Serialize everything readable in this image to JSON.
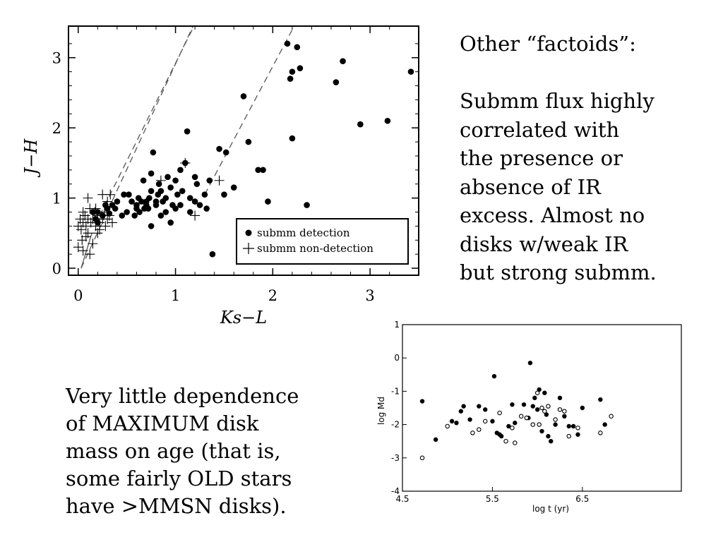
{
  "text": {
    "factoids": "Other “factoids”:\n\nSubmm flux highly\n correlated with\n the presence or\n absence of IR\n excess. Almost no\n disks w/weak IR\n but strong submm.",
    "dependence": "Very little dependence\n of MAXIMUM disk\n mass on age (that is,\n some fairly OLD stars\n have >MMSN disks)."
  },
  "chart_data": [
    {
      "type": "scatter",
      "title": "",
      "xlabel": "Ks−L",
      "ylabel": "J−H",
      "xlim": [
        -0.1,
        3.5
      ],
      "ylim": [
        -0.1,
        3.45
      ],
      "x_ticks": [
        0,
        1,
        2,
        3
      ],
      "x_tick_labels": [
        "0",
        "1",
        "2",
        "3"
      ],
      "y_ticks": [
        0,
        1,
        2,
        3
      ],
      "y_tick_labels": [
        "0",
        "1",
        "2",
        "3"
      ],
      "legend": {
        "placement": "bottom-right",
        "entries": [
          "submm detection",
          "submm non-detection"
        ]
      },
      "reference_lines": [
        {
          "style": "dashed",
          "points": [
            [
              0.03,
              0.0
            ],
            [
              1.18,
              3.45
            ]
          ]
        },
        {
          "style": "dashed",
          "points": [
            [
              0.22,
              0.75
            ],
            [
              1.19,
              3.45
            ]
          ]
        },
        {
          "style": "dashed",
          "points": [
            [
              1.3,
              1.05
            ],
            [
              2.22,
              3.45
            ]
          ]
        },
        {
          "style": "solid",
          "points": [
            [
              0.03,
              0.0
            ],
            [
              0.14,
              0.5
            ]
          ]
        }
      ],
      "series": [
        {
          "name": "submm detection",
          "marker": "filled-circle",
          "points": [
            [
              0.15,
              0.8
            ],
            [
              0.2,
              0.8
            ],
            [
              0.25,
              0.75
            ],
            [
              0.3,
              0.85
            ],
            [
              0.32,
              0.78
            ],
            [
              0.35,
              0.9
            ],
            [
              0.4,
              0.95
            ],
            [
              0.45,
              0.75
            ],
            [
              0.47,
              1.05
            ],
            [
              0.5,
              0.8
            ],
            [
              0.52,
              1.05
            ],
            [
              0.55,
              0.95
            ],
            [
              0.6,
              0.85
            ],
            [
              0.62,
              1.0
            ],
            [
              0.63,
              0.8
            ],
            [
              0.65,
              0.95
            ],
            [
              0.67,
              1.25
            ],
            [
              0.7,
              0.9
            ],
            [
              0.72,
              0.85
            ],
            [
              0.73,
              1.0
            ],
            [
              0.75,
              0.6
            ],
            [
              0.75,
              1.1
            ],
            [
              0.75,
              1.35
            ],
            [
              0.77,
              1.65
            ],
            [
              0.8,
              0.95
            ],
            [
              0.8,
              0.9
            ],
            [
              0.82,
              1.05
            ],
            [
              0.83,
              1.2
            ],
            [
              0.85,
              0.75
            ],
            [
              0.85,
              1.1
            ],
            [
              0.87,
              0.95
            ],
            [
              0.9,
              0.8
            ],
            [
              0.9,
              1.0
            ],
            [
              0.92,
              1.3
            ],
            [
              0.95,
              1.15
            ],
            [
              0.95,
              0.65
            ],
            [
              0.97,
              0.9
            ],
            [
              1.0,
              0.85
            ],
            [
              1.0,
              1.25
            ],
            [
              1.02,
              1.05
            ],
            [
              1.05,
              0.9
            ],
            [
              1.05,
              1.4
            ],
            [
              1.07,
              1.1
            ],
            [
              1.1,
              1.5
            ],
            [
              1.12,
              1.95
            ],
            [
              1.15,
              0.8
            ],
            [
              1.15,
              1.0
            ],
            [
              1.2,
              0.95
            ],
            [
              1.22,
              1.2
            ],
            [
              1.25,
              0.9
            ],
            [
              1.3,
              1.05
            ],
            [
              1.32,
              0.85
            ],
            [
              1.35,
              1.25
            ],
            [
              1.38,
              0.2
            ],
            [
              1.45,
              1.7
            ],
            [
              1.5,
              1.05
            ],
            [
              1.52,
              1.65
            ],
            [
              1.6,
              1.15
            ],
            [
              1.7,
              2.45
            ],
            [
              1.75,
              1.8
            ],
            [
              1.85,
              1.4
            ],
            [
              1.9,
              1.4
            ],
            [
              1.95,
              0.95
            ],
            [
              2.15,
              3.2
            ],
            [
              2.18,
              2.7
            ],
            [
              2.2,
              2.8
            ],
            [
              2.2,
              1.85
            ],
            [
              2.25,
              3.15
            ],
            [
              2.28,
              2.85
            ],
            [
              2.35,
              0.9
            ],
            [
              2.65,
              2.65
            ],
            [
              2.72,
              2.95
            ],
            [
              2.9,
              2.05
            ],
            [
              3.18,
              2.1
            ],
            [
              3.42,
              2.8
            ],
            [
              0.18,
              0.7
            ],
            [
              0.28,
              0.9
            ],
            [
              0.38,
              0.85
            ],
            [
              0.58,
              0.75
            ],
            [
              0.68,
              0.85
            ],
            [
              0.7,
              0.95
            ],
            [
              1.2,
              1.3
            ],
            [
              0.6,
              0.9
            ],
            [
              0.2,
              0.65
            ]
          ]
        },
        {
          "name": "submm non-detection",
          "marker": "plus",
          "points": [
            [
              0.0,
              0.6
            ],
            [
              0.02,
              0.7
            ],
            [
              0.03,
              0.55
            ],
            [
              0.05,
              0.8
            ],
            [
              0.05,
              0.65
            ],
            [
              0.07,
              0.75
            ],
            [
              0.08,
              0.6
            ],
            [
              0.1,
              0.7
            ],
            [
              0.1,
              0.5
            ],
            [
              0.12,
              0.85
            ],
            [
              0.13,
              0.65
            ],
            [
              0.15,
              0.7
            ],
            [
              0.17,
              0.8
            ],
            [
              0.18,
              0.6
            ],
            [
              0.2,
              0.75
            ],
            [
              0.22,
              0.65
            ],
            [
              0.25,
              0.7
            ],
            [
              0.27,
              0.8
            ],
            [
              0.28,
              0.6
            ],
            [
              0.3,
              0.7
            ],
            [
              0.32,
              0.75
            ],
            [
              0.35,
              0.65
            ],
            [
              0.1,
              1.0
            ],
            [
              0.25,
              1.05
            ],
            [
              0.0,
              0.3
            ],
            [
              0.05,
              0.25
            ],
            [
              0.12,
              0.2
            ],
            [
              0.15,
              0.35
            ],
            [
              0.2,
              0.5
            ],
            [
              0.22,
              0.55
            ],
            [
              0.08,
              0.45
            ],
            [
              0.04,
              0.4
            ],
            [
              0.3,
              0.95
            ],
            [
              0.33,
              1.05
            ],
            [
              0.85,
              1.25
            ],
            [
              1.2,
              0.75
            ],
            [
              1.45,
              1.25
            ],
            [
              1.1,
              1.5
            ],
            [
              0.18,
              0.85
            ]
          ]
        }
      ]
    },
    {
      "type": "scatter",
      "title": "",
      "xlabel": "log t (yr)",
      "ylabel": "log Md",
      "xlim": [
        4.5,
        7.6
      ],
      "ylim": [
        -4,
        1
      ],
      "x_ticks": [
        4.5,
        5.5,
        6.5
      ],
      "x_tick_labels": [
        "4.5",
        "5.5",
        "6.5"
      ],
      "y_ticks": [
        1,
        0,
        -1,
        -2,
        -3,
        -4
      ],
      "y_tick_labels": [
        "1",
        "0",
        "-1",
        "-2",
        "-3",
        "-4"
      ],
      "series": [
        {
          "marker": "filled-circle",
          "points": [
            [
              4.72,
              -1.3
            ],
            [
              4.87,
              -2.45
            ],
            [
              5.05,
              -1.9
            ],
            [
              5.1,
              -1.95
            ],
            [
              5.15,
              -1.6
            ],
            [
              5.18,
              -1.45
            ],
            [
              5.25,
              -1.85
            ],
            [
              5.35,
              -1.45
            ],
            [
              5.42,
              -1.55
            ],
            [
              5.5,
              -1.9
            ],
            [
              5.52,
              -0.55
            ],
            [
              5.55,
              -2.25
            ],
            [
              5.58,
              -2.3
            ],
            [
              5.6,
              -2.35
            ],
            [
              5.68,
              -2.05
            ],
            [
              5.72,
              -1.4
            ],
            [
              5.75,
              -1.95
            ],
            [
              5.85,
              -1.4
            ],
            [
              5.9,
              -1.8
            ],
            [
              5.92,
              -0.15
            ],
            [
              5.95,
              -1.45
            ],
            [
              5.97,
              -1.2
            ],
            [
              6.0,
              -1.55
            ],
            [
              6.02,
              -0.95
            ],
            [
              6.05,
              -2.2
            ],
            [
              6.08,
              -1.05
            ],
            [
              6.1,
              -1.7
            ],
            [
              6.12,
              -2.35
            ],
            [
              6.15,
              -2.5
            ],
            [
              6.2,
              -2.0
            ],
            [
              6.25,
              -1.2
            ],
            [
              6.3,
              -1.75
            ],
            [
              6.35,
              -2.05
            ],
            [
              6.4,
              -2.05
            ],
            [
              6.45,
              -2.3
            ],
            [
              6.5,
              -1.5
            ],
            [
              6.7,
              -1.25
            ],
            [
              6.75,
              -2.0
            ]
          ]
        },
        {
          "marker": "open-circle",
          "points": [
            [
              4.72,
              -3.0
            ],
            [
              5.0,
              -2.05
            ],
            [
              5.28,
              -2.25
            ],
            [
              5.35,
              -2.15
            ],
            [
              5.42,
              -1.9
            ],
            [
              5.58,
              -1.65
            ],
            [
              5.65,
              -2.5
            ],
            [
              5.72,
              -2.1
            ],
            [
              5.75,
              -2.55
            ],
            [
              5.82,
              -1.75
            ],
            [
              5.88,
              -1.8
            ],
            [
              5.95,
              -2.0
            ],
            [
              6.02,
              -2.0
            ],
            [
              6.05,
              -1.5
            ],
            [
              6.08,
              -1.6
            ],
            [
              6.12,
              -1.45
            ],
            [
              6.2,
              -1.85
            ],
            [
              6.25,
              -1.55
            ],
            [
              6.3,
              -1.6
            ],
            [
              6.35,
              -2.35
            ],
            [
              6.45,
              -2.1
            ],
            [
              6.7,
              -2.25
            ],
            [
              6.82,
              -1.75
            ],
            [
              6.0,
              -1.05
            ]
          ]
        }
      ]
    }
  ]
}
